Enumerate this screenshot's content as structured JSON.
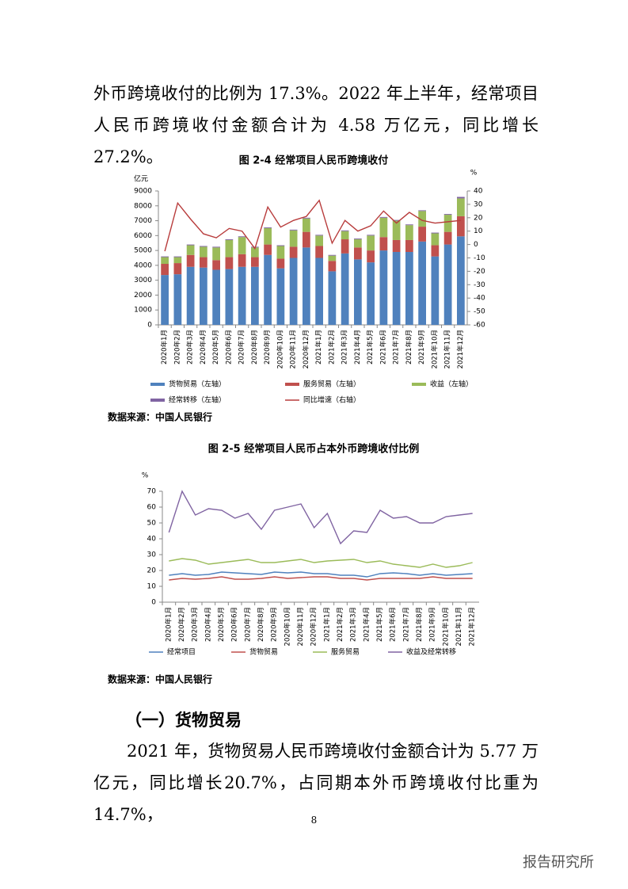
{
  "document": {
    "paragraph_1": "外币跨境收付的比例为 17.3%。2022 年上半年，经常项目人民币跨境收付金额合计为 4.58 万亿元，同比增长 27.2%。",
    "heading": "（一）货物贸易",
    "paragraph_2": "2021 年，货物贸易人民币跨境收付金额合计为 5.77 万亿元，同比增长20.7%，占同期本外币跨境收付比重为 14.7%，",
    "page_number": "8",
    "watermark": "报告研究所"
  },
  "chart_data": [
    {
      "type": "bar",
      "stacked": true,
      "title": "图 2-4  经常项目人民币跨境收付",
      "y_label": "亿元",
      "y2_label": "%",
      "source": "数据来源：中国人民银行",
      "categories": [
        "2020年1月",
        "2020年2月",
        "2020年3月",
        "2020年4月",
        "2020年5月",
        "2020年6月",
        "2020年7月",
        "2020年8月",
        "2020年9月",
        "2020年10月",
        "2020年11月",
        "2020年12月",
        "2021年1月",
        "2021年2月",
        "2021年3月",
        "2021年4月",
        "2021年5月",
        "2021年6月",
        "2021年7月",
        "2021年8月",
        "2021年9月",
        "2021年10月",
        "2021年11月",
        "2021年12月"
      ],
      "series": [
        {
          "name": "货物贸易（左轴）",
          "color": "#4f81bd",
          "values": [
            3350,
            3400,
            3900,
            3850,
            3700,
            3750,
            3900,
            3900,
            4700,
            3800,
            4500,
            5200,
            4500,
            3600,
            4800,
            4400,
            4200,
            5000,
            4900,
            4900,
            5600,
            4600,
            5400,
            5950
          ]
        },
        {
          "name": "服务贸易（左轴）",
          "color": "#c0504d",
          "values": [
            750,
            750,
            800,
            700,
            650,
            800,
            850,
            650,
            700,
            650,
            750,
            1050,
            800,
            700,
            950,
            800,
            800,
            900,
            800,
            800,
            1000,
            750,
            850,
            1350
          ]
        },
        {
          "name": "收益（左轴）",
          "color": "#9bbb59",
          "values": [
            450,
            400,
            650,
            700,
            850,
            1150,
            1150,
            650,
            1100,
            850,
            1100,
            900,
            700,
            350,
            550,
            550,
            1000,
            1300,
            1300,
            1000,
            1050,
            800,
            1150,
            1200
          ]
        },
        {
          "name": "经常转移（左轴）",
          "color": "#8064a2",
          "values": [
            50,
            50,
            50,
            50,
            50,
            50,
            50,
            50,
            50,
            50,
            50,
            50,
            50,
            50,
            50,
            50,
            50,
            50,
            50,
            50,
            50,
            50,
            50,
            100
          ]
        },
        {
          "name": "同比增速（右轴）",
          "color": "#b83c3c",
          "type": "line",
          "axis": "y2",
          "values": [
            -5,
            31,
            19,
            8,
            5,
            12,
            10,
            -3,
            28,
            13,
            18,
            21,
            33,
            1,
            18,
            10,
            14,
            25,
            16,
            24,
            18,
            16,
            17,
            18
          ]
        }
      ],
      "ylim": [
        0,
        9000
      ],
      "yticks": [
        0,
        1000,
        2000,
        3000,
        4000,
        5000,
        6000,
        7000,
        8000,
        9000
      ],
      "y2lim": [
        -60,
        40
      ],
      "y2ticks": [
        -60,
        -50,
        -40,
        -30,
        -20,
        -10,
        0,
        10,
        20,
        30,
        40
      ],
      "grid": false
    },
    {
      "type": "line",
      "title": "图 2-5  经常项目人民币占本外币跨境收付比例",
      "y_label": "%",
      "source": "数据来源：中国人民银行",
      "categories": [
        "2020年1月",
        "2020年2月",
        "2020年3月",
        "2020年4月",
        "2020年5月",
        "2020年6月",
        "2020年7月",
        "2020年8月",
        "2020年9月",
        "2020年10月",
        "2020年11月",
        "2020年12月",
        "2021年1月",
        "2021年2月",
        "2021年3月",
        "2021年4月",
        "2021年5月",
        "2021年6月",
        "2021年7月",
        "2021年8月",
        "2021年9月",
        "2021年10月",
        "2021年11月",
        "2021年12月"
      ],
      "series": [
        {
          "name": "经常项目",
          "color": "#4f81bd",
          "values": [
            17,
            18,
            17,
            17.5,
            19,
            18.5,
            18,
            17.5,
            19,
            18.5,
            19,
            18,
            18,
            17,
            17,
            16,
            18,
            18.5,
            18,
            17,
            18,
            17,
            17.5,
            18
          ]
        },
        {
          "name": "货物贸易",
          "color": "#c0504d",
          "values": [
            14,
            15,
            14.5,
            15,
            16,
            14.5,
            14.5,
            15,
            16,
            15,
            15.5,
            16,
            16,
            15,
            15,
            14,
            15,
            15,
            15,
            15,
            16,
            15,
            15,
            15
          ]
        },
        {
          "name": "服务贸易",
          "color": "#9bbb59",
          "values": [
            26,
            27.5,
            26.5,
            24,
            25,
            26,
            27,
            25,
            25,
            26,
            27,
            25,
            26,
            26.5,
            27,
            25,
            26,
            24,
            23,
            22,
            24,
            22,
            23,
            25
          ]
        },
        {
          "name": "收益及经常转移",
          "color": "#8064a2",
          "values": [
            44,
            70,
            55,
            59,
            58,
            53,
            56,
            46,
            58,
            60,
            62,
            47,
            56,
            37,
            45,
            44,
            58,
            53,
            54,
            50,
            50,
            54,
            55,
            56
          ]
        }
      ],
      "ylim": [
        0,
        70
      ],
      "yticks": [
        0,
        10,
        20,
        30,
        40,
        50,
        60,
        70
      ],
      "grid": false
    }
  ]
}
